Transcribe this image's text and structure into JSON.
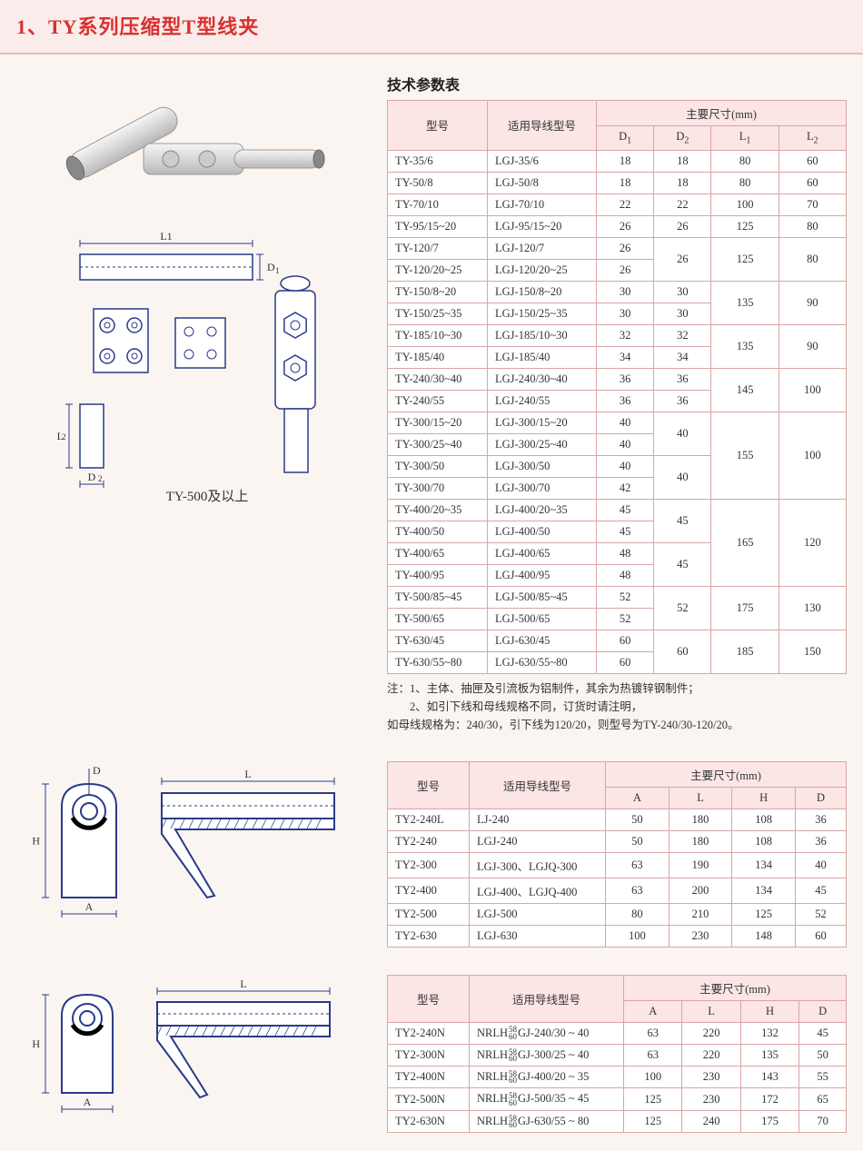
{
  "page_title": "1、TY系列压缩型T型线夹",
  "table1": {
    "title": "技术参数表",
    "header_model": "型号",
    "header_wire": "适用导线型号",
    "header_dim": "主要尺寸(mm)",
    "col_d1": "D1",
    "col_d2": "D2",
    "col_l1": "L1",
    "col_l2": "L2",
    "groups": [
      {
        "l1": "80",
        "l2": "60",
        "rows": [
          {
            "model": "TY-35/6",
            "wire": "LGJ-35/6",
            "d1": "18",
            "d2": "18"
          }
        ]
      },
      {
        "l1": "80",
        "l2": "60",
        "rows": [
          {
            "model": "TY-50/8",
            "wire": "LGJ-50/8",
            "d1": "18",
            "d2": "18"
          }
        ]
      },
      {
        "l1": "100",
        "l2": "70",
        "rows": [
          {
            "model": "TY-70/10",
            "wire": "LGJ-70/10",
            "d1": "22",
            "d2": "22"
          }
        ]
      },
      {
        "l1": "125",
        "l2": "80",
        "rows": [
          {
            "model": "TY-95/15~20",
            "wire": "LGJ-95/15~20",
            "d1": "26",
            "d2": "26"
          }
        ]
      },
      {
        "l1": "125",
        "l2": "80",
        "d2": "26",
        "rows": [
          {
            "model": "TY-120/7",
            "wire": "LGJ-120/7",
            "d1": "26"
          },
          {
            "model": "TY-120/20~25",
            "wire": "LGJ-120/20~25",
            "d1": "26"
          }
        ]
      },
      {
        "l1": "135",
        "l2": "90",
        "rows": [
          {
            "model": "TY-150/8~20",
            "wire": "LGJ-150/8~20",
            "d1": "30",
            "d2": "30"
          },
          {
            "model": "TY-150/25~35",
            "wire": "LGJ-150/25~35",
            "d1": "30",
            "d2": "30"
          }
        ]
      },
      {
        "l1": "135",
        "l2": "90",
        "rows": [
          {
            "model": "TY-185/10~30",
            "wire": "LGJ-185/10~30",
            "d1": "32",
            "d2": "32"
          },
          {
            "model": "TY-185/40",
            "wire": "LGJ-185/40",
            "d1": "34",
            "d2": "34"
          }
        ]
      },
      {
        "l1": "145",
        "l2": "100",
        "rows": [
          {
            "model": "TY-240/30~40",
            "wire": "LGJ-240/30~40",
            "d1": "36",
            "d2": "36"
          },
          {
            "model": "TY-240/55",
            "wire": "LGJ-240/55",
            "d1": "36",
            "d2": "36"
          }
        ]
      },
      {
        "l1": "155",
        "l2": "100",
        "d2_pair": [
          "40",
          "40"
        ],
        "rows": [
          {
            "model": "TY-300/15~20",
            "wire": "LGJ-300/15~20",
            "d1": "40"
          },
          {
            "model": "TY-300/25~40",
            "wire": "LGJ-300/25~40",
            "d1": "40"
          },
          {
            "model": "TY-300/50",
            "wire": "LGJ-300/50",
            "d1": "40"
          },
          {
            "model": "TY-300/70",
            "wire": "LGJ-300/70",
            "d1": "42"
          }
        ]
      },
      {
        "l1": "165",
        "l2": "120",
        "d2_pair": [
          "45",
          "45"
        ],
        "rows": [
          {
            "model": "TY-400/20~35",
            "wire": "LGJ-400/20~35",
            "d1": "45"
          },
          {
            "model": "TY-400/50",
            "wire": "LGJ-400/50",
            "d1": "45"
          },
          {
            "model": "TY-400/65",
            "wire": "LGJ-400/65",
            "d1": "48"
          },
          {
            "model": "TY-400/95",
            "wire": "LGJ-400/95",
            "d1": "48"
          }
        ]
      },
      {
        "l1": "175",
        "l2": "130",
        "d2": "52",
        "rows": [
          {
            "model": "TY-500/85~45",
            "wire": "LGJ-500/85~45",
            "d1": "52"
          },
          {
            "model": "TY-500/65",
            "wire": "LGJ-500/65",
            "d1": "52"
          }
        ]
      },
      {
        "l1": "185",
        "l2": "150",
        "d2": "60",
        "rows": [
          {
            "model": "TY-630/45",
            "wire": "LGJ-630/45",
            "d1": "60"
          },
          {
            "model": "TY-630/55~80",
            "wire": "LGJ-630/55~80",
            "d1": "60"
          }
        ]
      }
    ],
    "notes": [
      "注：1、主体、抽匣及引流板为铝制件，其余为热镀锌钢制件；",
      "　　2、如引下线和母线规格不同，订货时请注明，",
      "如母线规格为：240/30，引下线为120/20，则型号为TY-240/30-120/20。"
    ]
  },
  "table2": {
    "header_model": "型号",
    "header_wire": "适用导线型号",
    "header_dim": "主要尺寸(mm)",
    "cols": [
      "A",
      "L",
      "H",
      "D"
    ],
    "rows": [
      {
        "model": "TY2-240L",
        "wire": "LJ-240",
        "v": [
          "50",
          "180",
          "108",
          "36"
        ]
      },
      {
        "model": "TY2-240",
        "wire": "LGJ-240",
        "v": [
          "50",
          "180",
          "108",
          "36"
        ]
      },
      {
        "model": "TY2-300",
        "wire": "LGJ-300、LGJQ-300",
        "v": [
          "63",
          "190",
          "134",
          "40"
        ]
      },
      {
        "model": "TY2-400",
        "wire": "LGJ-400、LGJQ-400",
        "v": [
          "63",
          "200",
          "134",
          "45"
        ]
      },
      {
        "model": "TY2-500",
        "wire": "LGJ-500",
        "v": [
          "80",
          "210",
          "125",
          "52"
        ]
      },
      {
        "model": "TY2-630",
        "wire": "LGJ-630",
        "v": [
          "100",
          "230",
          "148",
          "60"
        ]
      }
    ]
  },
  "table3": {
    "header_model": "型号",
    "header_wire": "适用导线型号",
    "header_dim": "主要尺寸(mm)",
    "cols": [
      "A",
      "L",
      "H",
      "D"
    ],
    "wire_prefix": "NRLH",
    "wire_sup": "58",
    "wire_sub": "60",
    "rows": [
      {
        "model": "TY2-240N",
        "wire_tail": "GJ-240/30 ~ 40",
        "v": [
          "63",
          "220",
          "132",
          "45"
        ]
      },
      {
        "model": "TY2-300N",
        "wire_tail": "GJ-300/25 ~ 40",
        "v": [
          "63",
          "220",
          "135",
          "50"
        ]
      },
      {
        "model": "TY2-400N",
        "wire_tail": "GJ-400/20 ~ 35",
        "v": [
          "100",
          "230",
          "143",
          "55"
        ]
      },
      {
        "model": "TY2-500N",
        "wire_tail": "GJ-500/35 ~ 45",
        "v": [
          "125",
          "230",
          "172",
          "65"
        ]
      },
      {
        "model": "TY2-630N",
        "wire_tail": "GJ-630/55 ~ 80",
        "v": [
          "125",
          "240",
          "175",
          "70"
        ]
      }
    ]
  },
  "diagrams": {
    "caption1": "TY-500及以上",
    "labels": {
      "L1": "L1",
      "L2": "L2",
      "D1": "D1",
      "D2": "D2",
      "A": "A",
      "L": "L",
      "H": "H",
      "D": "D"
    },
    "stroke": "#2a3a8a",
    "fill_bg": "#ffffff"
  }
}
